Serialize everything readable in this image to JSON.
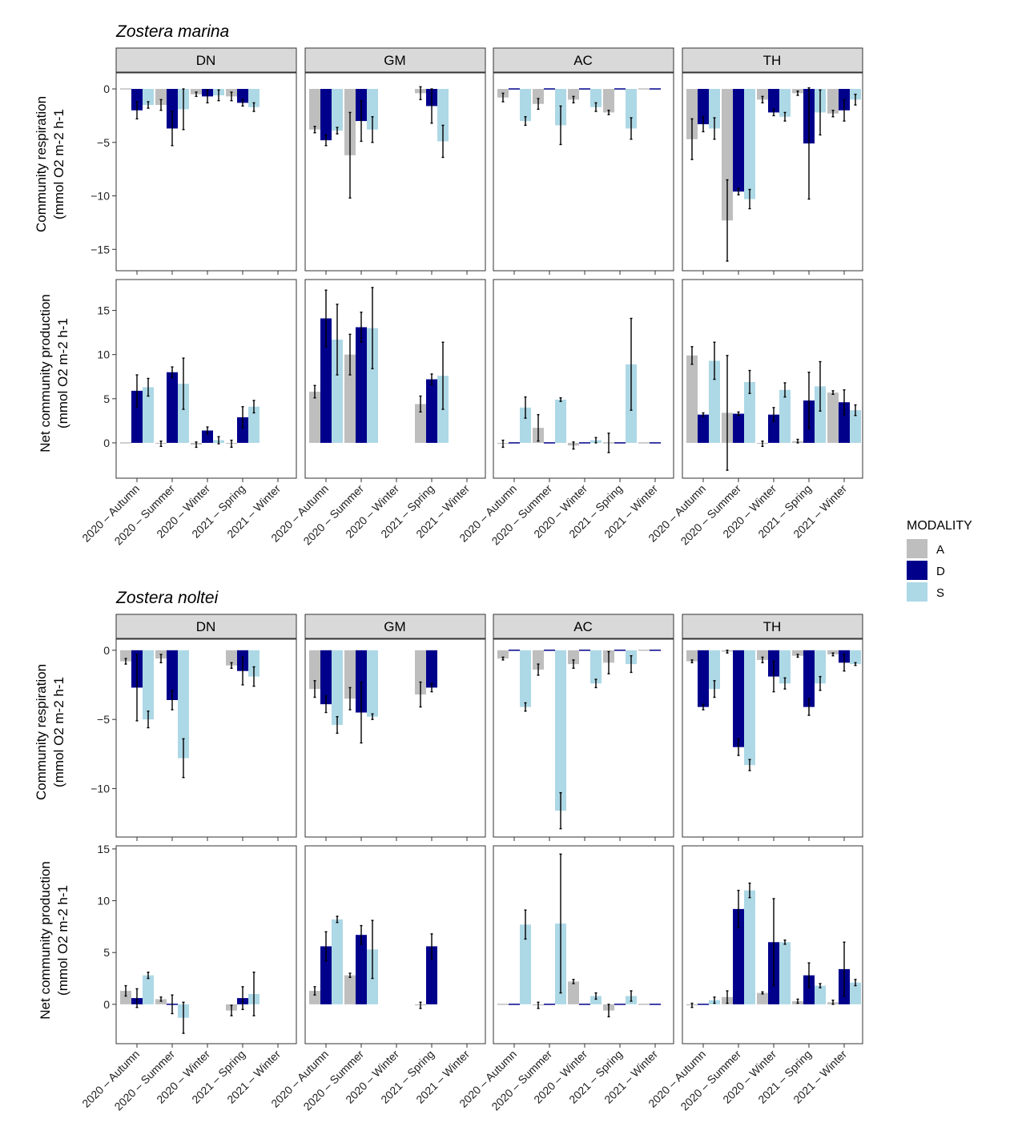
{
  "colors": {
    "A": "#bebebe",
    "D": "#00008b",
    "S": "#add8e6",
    "strip_bg": "#d9d9d9"
  },
  "categories": [
    "2020 – Autumn",
    "2020 – Summer",
    "2020 – Winter",
    "2021 – Spring",
    "2021 – Winter"
  ],
  "sites": [
    "DN",
    "GM",
    "AC",
    "TH"
  ],
  "legend": {
    "title": "MODALITY",
    "items": [
      "A",
      "D",
      "S"
    ]
  },
  "chart_data": [
    {
      "type": "bar",
      "title": "Zostera marina",
      "ylabel_line1": "Community respiration",
      "ylabel_line2": "(mmol O2 m-2 h-1",
      "ylim": [
        -17,
        1.5
      ],
      "yticks": [
        0,
        -5,
        -10,
        -15
      ],
      "facets": {
        "DN": {
          "A": [
            0,
            -1.5,
            -0.5,
            -0.7,
            null
          ],
          "D": [
            -2.0,
            -3.7,
            -0.7,
            -1.3,
            null
          ],
          "S": [
            -1.5,
            -1.9,
            -0.6,
            -1.7,
            null
          ],
          "errA": [
            0,
            0.5,
            0.2,
            0.4,
            0
          ],
          "errD": [
            0.8,
            1.6,
            0.6,
            0.3,
            0
          ],
          "errS": [
            0.3,
            1.9,
            0.5,
            0.4,
            0
          ]
        },
        "GM": {
          "A": [
            -3.8,
            -6.2,
            null,
            -0.4,
            null
          ],
          "D": [
            -4.8,
            -3.0,
            null,
            -1.6,
            null
          ],
          "S": [
            -3.9,
            -3.8,
            null,
            -4.9,
            null
          ],
          "errA": [
            0.3,
            4.0,
            0,
            0.6,
            0
          ],
          "errD": [
            0.5,
            1.9,
            0,
            1.6,
            0
          ],
          "errS": [
            0.3,
            1.2,
            0,
            1.5,
            0
          ]
        },
        "AC": {
          "A": [
            -0.8,
            -1.4,
            -1.0,
            -2.2,
            0
          ],
          "D": [
            0,
            0,
            0,
            0,
            0
          ],
          "S": [
            -3.0,
            -3.4,
            -1.7,
            -3.7,
            null
          ],
          "errA": [
            0.4,
            0.5,
            0.3,
            0.2,
            0
          ],
          "errD": [
            0,
            0,
            0,
            0,
            0
          ],
          "errS": [
            0.4,
            1.8,
            0.4,
            1.0,
            0
          ]
        },
        "TH": {
          "A": [
            -4.7,
            -12.3,
            -1.0,
            -0.4,
            -2.3
          ],
          "D": [
            -3.3,
            -9.6,
            -2.2,
            -5.1,
            -2.0
          ],
          "S": [
            -3.7,
            -10.3,
            -2.6,
            -2.2,
            -1.0
          ],
          "errA": [
            1.9,
            3.8,
            0.3,
            0.2,
            0.3
          ],
          "errD": [
            0.7,
            0.3,
            0.3,
            5.2,
            1.0
          ],
          "errS": [
            1.0,
            0.9,
            0.4,
            2.1,
            0.5
          ]
        }
      }
    },
    {
      "type": "bar",
      "title": "Zostera marina",
      "ylabel_line1": "Net community production",
      "ylabel_line2": "(mmol O2 m-2 h-1",
      "ylim": [
        -4,
        18.5
      ],
      "yticks": [
        0,
        5,
        10,
        15
      ],
      "facets": {
        "DN": {
          "A": [
            0,
            -0.1,
            -0.2,
            -0.1,
            null
          ],
          "D": [
            5.9,
            8.0,
            1.4,
            2.9,
            null
          ],
          "S": [
            6.3,
            6.7,
            0.3,
            4.1,
            null
          ],
          "errA": [
            0,
            0.3,
            0.3,
            0.4,
            0
          ],
          "errD": [
            1.8,
            0.6,
            0.4,
            1.2,
            0
          ],
          "errS": [
            1.0,
            2.9,
            0.4,
            0.7,
            0
          ]
        },
        "GM": {
          "A": [
            5.8,
            10.0,
            null,
            4.4,
            null
          ],
          "D": [
            14.1,
            13.1,
            null,
            7.2,
            null
          ],
          "S": [
            11.7,
            13.0,
            null,
            7.6,
            null
          ],
          "errA": [
            0.7,
            2.3,
            0,
            0.9,
            0
          ],
          "errD": [
            3.2,
            1.7,
            0,
            0.6,
            0
          ],
          "errS": [
            4.0,
            4.6,
            0,
            3.8,
            0
          ]
        },
        "AC": {
          "A": [
            -0.1,
            1.7,
            -0.3,
            0,
            0
          ],
          "D": [
            0,
            0,
            0,
            0,
            0
          ],
          "S": [
            4.0,
            4.9,
            0.3,
            8.9,
            null
          ],
          "errA": [
            0.4,
            1.5,
            0.4,
            1.1,
            0
          ],
          "errD": [
            0,
            0,
            0,
            0,
            0
          ],
          "errS": [
            1.2,
            0.2,
            0.3,
            5.2,
            0
          ]
        },
        "TH": {
          "A": [
            9.9,
            3.4,
            -0.1,
            0.2,
            5.7
          ],
          "D": [
            3.2,
            3.3,
            3.2,
            4.8,
            4.6
          ],
          "S": [
            9.3,
            6.9,
            6.0,
            6.4,
            3.7
          ],
          "errA": [
            1.0,
            6.5,
            0.3,
            0.2,
            0.2
          ],
          "errD": [
            0.2,
            0.2,
            0.8,
            3.2,
            1.4
          ],
          "errS": [
            2.1,
            1.3,
            0.8,
            2.8,
            0.6
          ]
        }
      }
    },
    {
      "type": "bar",
      "title": "Zostera noltei",
      "ylabel_line1": "Community respiration",
      "ylabel_line2": "(mmol O2 m-2 h-1",
      "ylim": [
        -13.5,
        0.8
      ],
      "yticks": [
        0,
        -5,
        -10
      ],
      "facets": {
        "DN": {
          "A": [
            -0.8,
            -0.6,
            null,
            -1.1,
            null
          ],
          "D": [
            -2.7,
            -3.6,
            null,
            -1.5,
            null
          ],
          "S": [
            -5.0,
            -7.8,
            null,
            -1.9,
            null
          ],
          "errA": [
            0.2,
            0.3,
            0,
            0.2,
            0
          ],
          "errD": [
            2.4,
            0.7,
            0,
            1.0,
            0
          ],
          "errS": [
            0.6,
            1.4,
            0,
            0.7,
            0
          ]
        },
        "GM": {
          "A": [
            -2.8,
            -3.5,
            null,
            -3.2,
            null
          ],
          "D": [
            -3.9,
            -4.5,
            null,
            -2.7,
            null
          ],
          "S": [
            -5.4,
            -4.8,
            null,
            null,
            null
          ],
          "errA": [
            0.6,
            0.8,
            0,
            0.9,
            0
          ],
          "errD": [
            0.6,
            2.2,
            0,
            0.3,
            0
          ],
          "errS": [
            0.6,
            0.2,
            0,
            0,
            0
          ]
        },
        "AC": {
          "A": [
            -0.6,
            -1.4,
            -1.0,
            -0.9,
            0
          ],
          "D": [
            0,
            0,
            0,
            0,
            0
          ],
          "S": [
            -4.1,
            -11.6,
            -2.4,
            -1.0,
            null
          ],
          "errA": [
            0.1,
            0.4,
            0.3,
            0.8,
            0
          ],
          "errD": [
            0,
            0,
            0,
            0,
            0
          ],
          "errS": [
            0.3,
            1.3,
            0.3,
            0.6,
            0
          ]
        },
        "TH": {
          "A": [
            -0.8,
            -0.1,
            -0.7,
            -0.4,
            -0.3
          ],
          "D": [
            -4.1,
            -7.0,
            -1.9,
            -4.1,
            -0.9
          ],
          "S": [
            -2.8,
            -8.3,
            -2.4,
            -2.4,
            -1.0
          ],
          "errA": [
            0.1,
            0.1,
            0.2,
            0.1,
            0.1
          ],
          "errD": [
            0.2,
            0.6,
            1.1,
            0.6,
            0.6
          ],
          "errS": [
            0.6,
            0.4,
            0.4,
            0.5,
            0.1
          ]
        }
      }
    },
    {
      "type": "bar",
      "title": "Zostera noltei",
      "ylabel_line1": "Net community production",
      "ylabel_line2": "(mmol O2 m-2 h-1",
      "ylim": [
        -3.8,
        15.3
      ],
      "yticks": [
        0,
        5,
        10,
        15
      ],
      "facets": {
        "DN": {
          "A": [
            1.3,
            0.5,
            null,
            -0.6,
            null
          ],
          "D": [
            0.6,
            0,
            null,
            0.6,
            null
          ],
          "S": [
            2.8,
            -1.3,
            null,
            1.0,
            null
          ],
          "errA": [
            0.5,
            0.2,
            0,
            0.5,
            0
          ],
          "errD": [
            0.9,
            0.9,
            0,
            1.1,
            0
          ],
          "errS": [
            0.3,
            1.5,
            0,
            2.1,
            0
          ]
        },
        "GM": {
          "A": [
            1.3,
            2.8,
            null,
            -0.1,
            null
          ],
          "D": [
            5.6,
            6.7,
            null,
            5.6,
            null
          ],
          "S": [
            8.2,
            5.3,
            null,
            null,
            null
          ],
          "errA": [
            0.4,
            0.2,
            0,
            0.3,
            0
          ],
          "errD": [
            1.4,
            0.9,
            0,
            1.2,
            0
          ],
          "errS": [
            0.3,
            2.8,
            0,
            0,
            0
          ]
        },
        "AC": {
          "A": [
            0,
            -0.1,
            2.2,
            -0.6,
            0
          ],
          "D": [
            0,
            0,
            0,
            0,
            0
          ],
          "S": [
            7.7,
            7.8,
            0.8,
            0.8,
            null
          ],
          "errA": [
            0,
            0.3,
            0.2,
            0.6,
            0
          ],
          "errD": [
            0,
            0,
            0,
            0,
            0
          ],
          "errS": [
            1.4,
            6.7,
            0.3,
            0.5,
            0
          ]
        },
        "TH": {
          "A": [
            -0.1,
            0.7,
            1.1,
            0.3,
            0.2
          ],
          "D": [
            0,
            9.2,
            6.0,
            2.8,
            3.4
          ],
          "S": [
            0.4,
            11.0,
            6.0,
            1.8,
            2.1
          ],
          "errA": [
            0.2,
            0.6,
            0.1,
            0.2,
            0.2
          ],
          "errD": [
            0,
            1.8,
            4.2,
            1.2,
            2.6
          ],
          "errS": [
            0.3,
            0.7,
            0.2,
            0.2,
            0.3
          ]
        }
      }
    }
  ]
}
